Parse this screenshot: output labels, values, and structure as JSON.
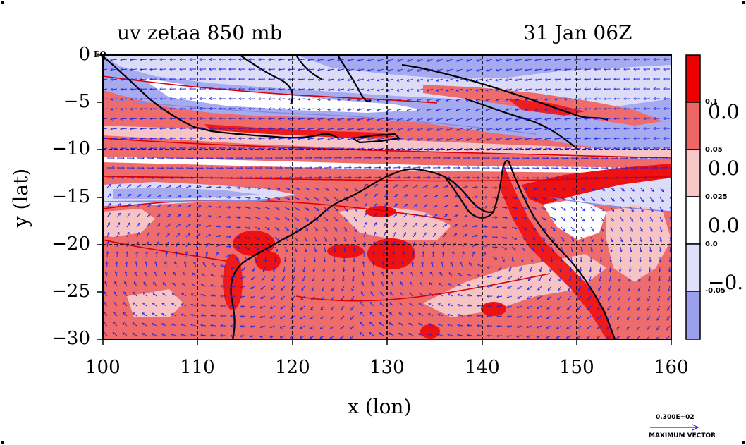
{
  "title": {
    "variable": "uv zetaa 850 mb",
    "time": "31 Jan 06Z"
  },
  "axes": {
    "x_label": "x (lon)",
    "y_label": "y (lat)",
    "x_ticks": [
      "100",
      "110",
      "120",
      "130",
      "140",
      "150",
      "160"
    ],
    "y_ticks": [
      "0",
      "−5",
      "−10",
      "−15",
      "−20",
      "−25",
      "−30"
    ],
    "eq_label": "EQ",
    "x_range": [
      100,
      160
    ],
    "y_range": [
      -30,
      0
    ],
    "grid_lon": [
      110,
      120,
      130,
      140,
      150
    ],
    "grid_lat": [
      -10,
      -20
    ]
  },
  "colorbar": {
    "levels": [
      "0.1",
      "0.05",
      "0.025",
      "0.0",
      "-0.05"
    ],
    "overlapping_labels": [
      "0.0",
      "0.0",
      "0.0",
      "−0."
    ],
    "colors": [
      "#ee0000",
      "#ee6666",
      "#f8c8c8",
      "#ffffff",
      "#e0e0f8",
      "#9aa0ee"
    ]
  },
  "max_vector": {
    "value": "0.300E+02",
    "label": "MAXIMUM VECTOR"
  },
  "colors": {
    "red_strong": "#ee1111",
    "red_mid": "#ee6c6c",
    "red_light": "#f6c4c4",
    "blue_light": "#dcdcf6",
    "blue_mid": "#a6aaee",
    "vector": "#1a22e6",
    "coast": "#000000",
    "contour_red": "#dd0000",
    "contour_blue": "#8888dd"
  }
}
